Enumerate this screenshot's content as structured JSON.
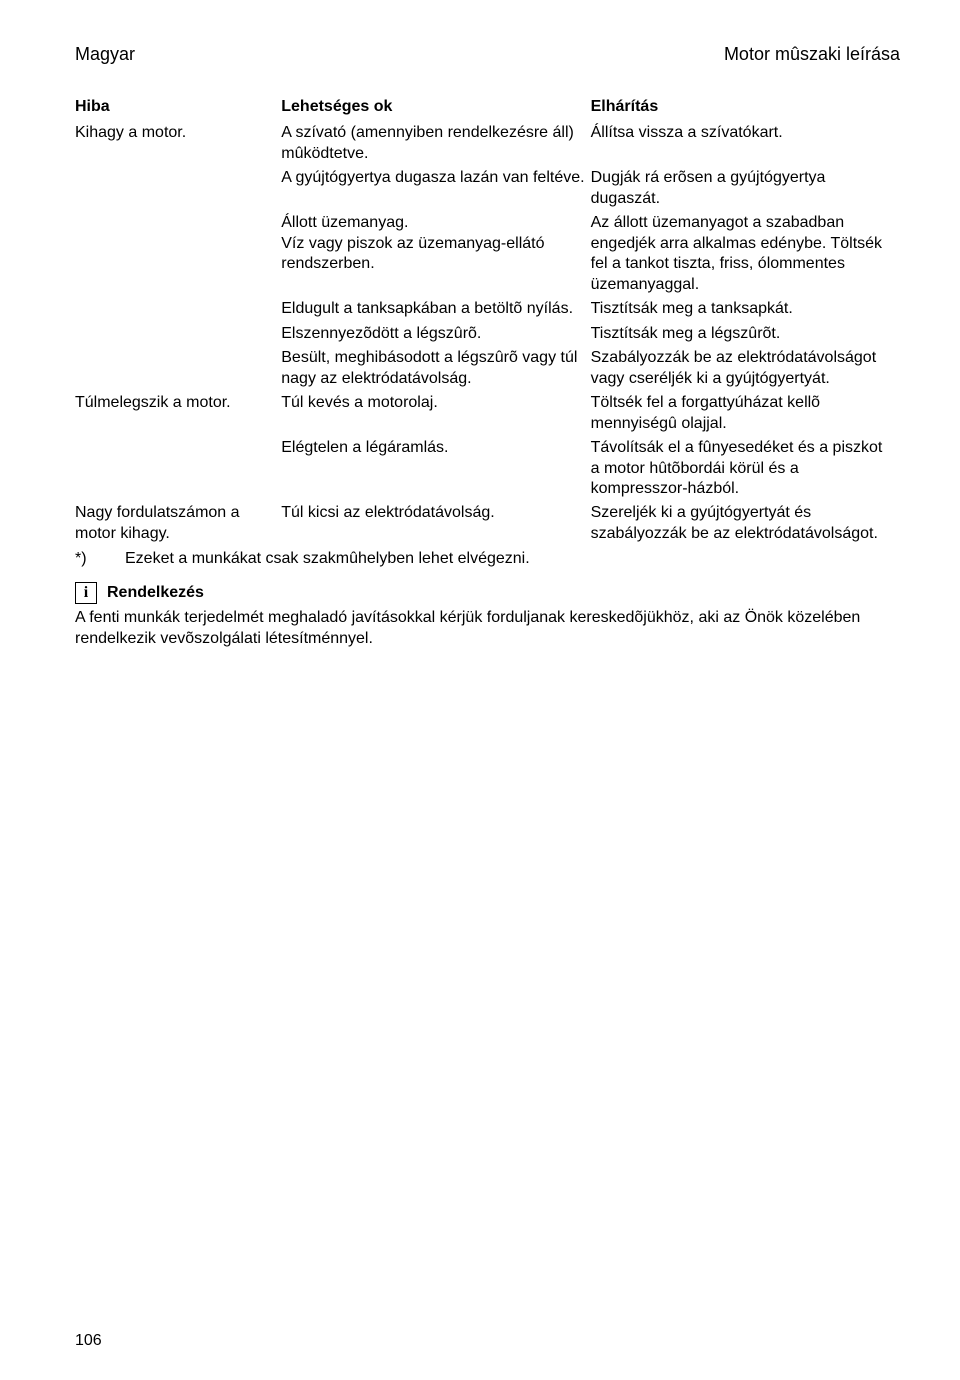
{
  "header": {
    "left": "Magyar",
    "right": "Motor mûszaki leírása"
  },
  "table": {
    "headers": [
      "Hiba",
      "Lehetséges ok",
      "Elhárítás"
    ],
    "rows": [
      {
        "c1": "Kihagy a motor.",
        "c2": "A szívató (amennyiben rendelkezésre áll) mûködtetve.",
        "c3": "Állítsa vissza a szívatókart."
      },
      {
        "c1": "",
        "c2": "A gyújtógyertya dugasza lazán van feltéve.",
        "c3": "Dugják rá erõsen a gyújtógyertya dugaszát."
      },
      {
        "c1": "",
        "c2": "Állott üzemanyag.\nVíz vagy piszok az üzemanyag-ellátó rendszerben.",
        "c3": "Az állott üzemanyagot a szabadban engedjék arra alkalmas edénybe. Töltsék fel a tankot tiszta, friss, ólommentes üzemanyaggal."
      },
      {
        "c1": "",
        "c2": "Eldugult a tanksapkában a betöltõ nyílás.",
        "c3": "Tisztítsák meg a tanksapkát."
      },
      {
        "c1": "",
        "c2": "Elszennyezõdött a légszûrõ.",
        "c3": "Tisztítsák meg a légszûrõt."
      },
      {
        "c1": "",
        "c2": "Besült, meghibásodott a légszûrõ vagy túl nagy az elektródatávolság.",
        "c3": "Szabályozzák be az elektródatávolságot vagy cseréljék ki a gyújtógyertyát."
      },
      {
        "c1": "Túlmelegszik a motor.",
        "c2": "Túl kevés a motorolaj.",
        "c3": "Töltsék fel a forgattyúházat kellõ mennyiségû olajjal."
      },
      {
        "c1": "",
        "c2": "Elégtelen a légáramlás.",
        "c3": "Távolítsák el a fûnyesedéket és a piszkot a motor hûtõbordái körül és a kompresszor-házból."
      },
      {
        "c1": "Nagy fordulatszámon a motor kihagy.",
        "c2": "Túl kicsi az elektródatávolság.",
        "c3": "Szereljék ki a gyújtógyertyát és szabályozzák be az elektródatávolságot."
      }
    ]
  },
  "footnote": {
    "star": "*)",
    "text": "Ezeket a munkákat csak szakmûhelyben lehet elvégezni."
  },
  "info": {
    "icon_glyph": "i",
    "label": "Rendelkezés",
    "text": "A fenti munkák terjedelmét meghaladó javításokkal kérjük forduljanak kereskedõjükhöz, aki az Önök közelében rendelkezik vevõszolgálati létesítménnyel."
  },
  "page_number": "106"
}
